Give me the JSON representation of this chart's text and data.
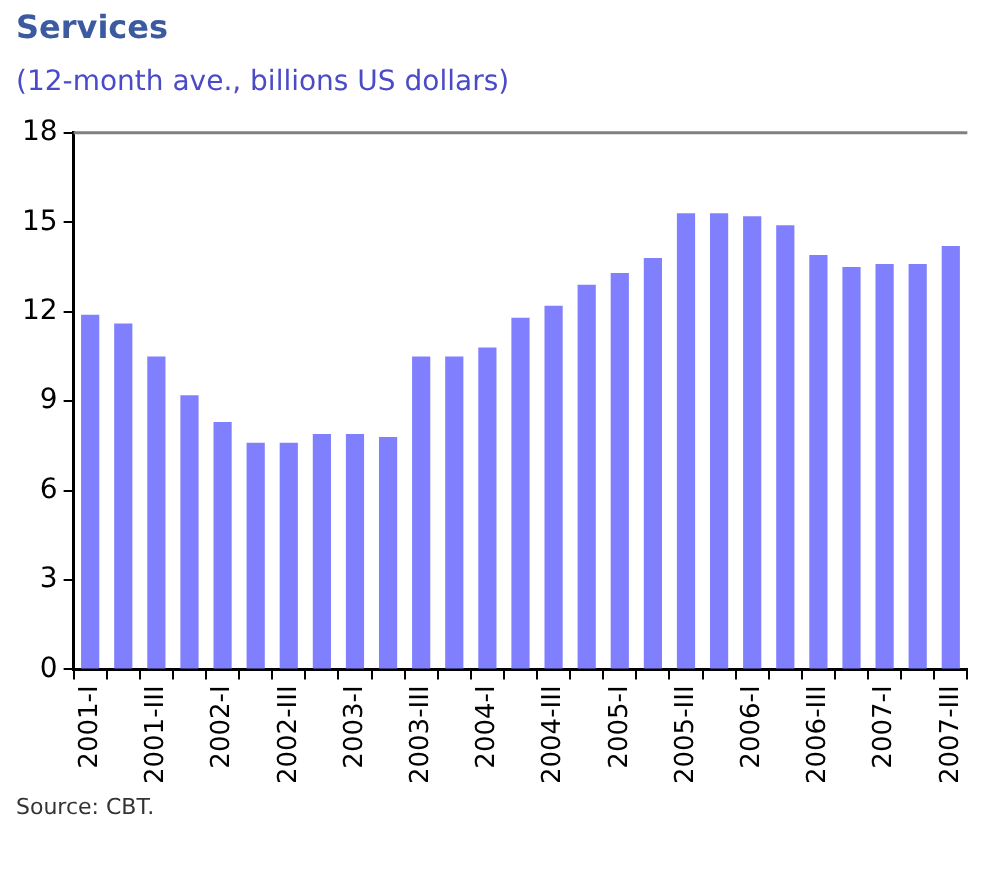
{
  "chart_data": {
    "type": "bar",
    "title": "Services",
    "subtitle": "(12-month ave., billions US dollars)",
    "categories": [
      "2001-I",
      null,
      "2001-III",
      null,
      "2002-I",
      null,
      "2002-III",
      null,
      "2003-I",
      null,
      "2003-III",
      null,
      "2004-I",
      null,
      "2004-III",
      null,
      "2005-I",
      null,
      "2005-III",
      null,
      "2006-I",
      null,
      "2006-III",
      null,
      "2007-I",
      null,
      "2007-III"
    ],
    "values": [
      11.9,
      11.6,
      10.5,
      9.2,
      8.3,
      7.6,
      7.6,
      7.9,
      7.9,
      7.8,
      10.5,
      10.5,
      10.8,
      11.8,
      12.2,
      12.9,
      13.3,
      13.8,
      15.3,
      15.3,
      15.2,
      14.9,
      13.9,
      13.5,
      13.6,
      13.6,
      14.2
    ],
    "color": "#8080ff",
    "ylim": [
      0,
      18
    ],
    "yticks": [
      0,
      3,
      6,
      9,
      12,
      15,
      18
    ],
    "grid": false,
    "legend": false,
    "annotations": [
      "Source: CBT."
    ]
  }
}
